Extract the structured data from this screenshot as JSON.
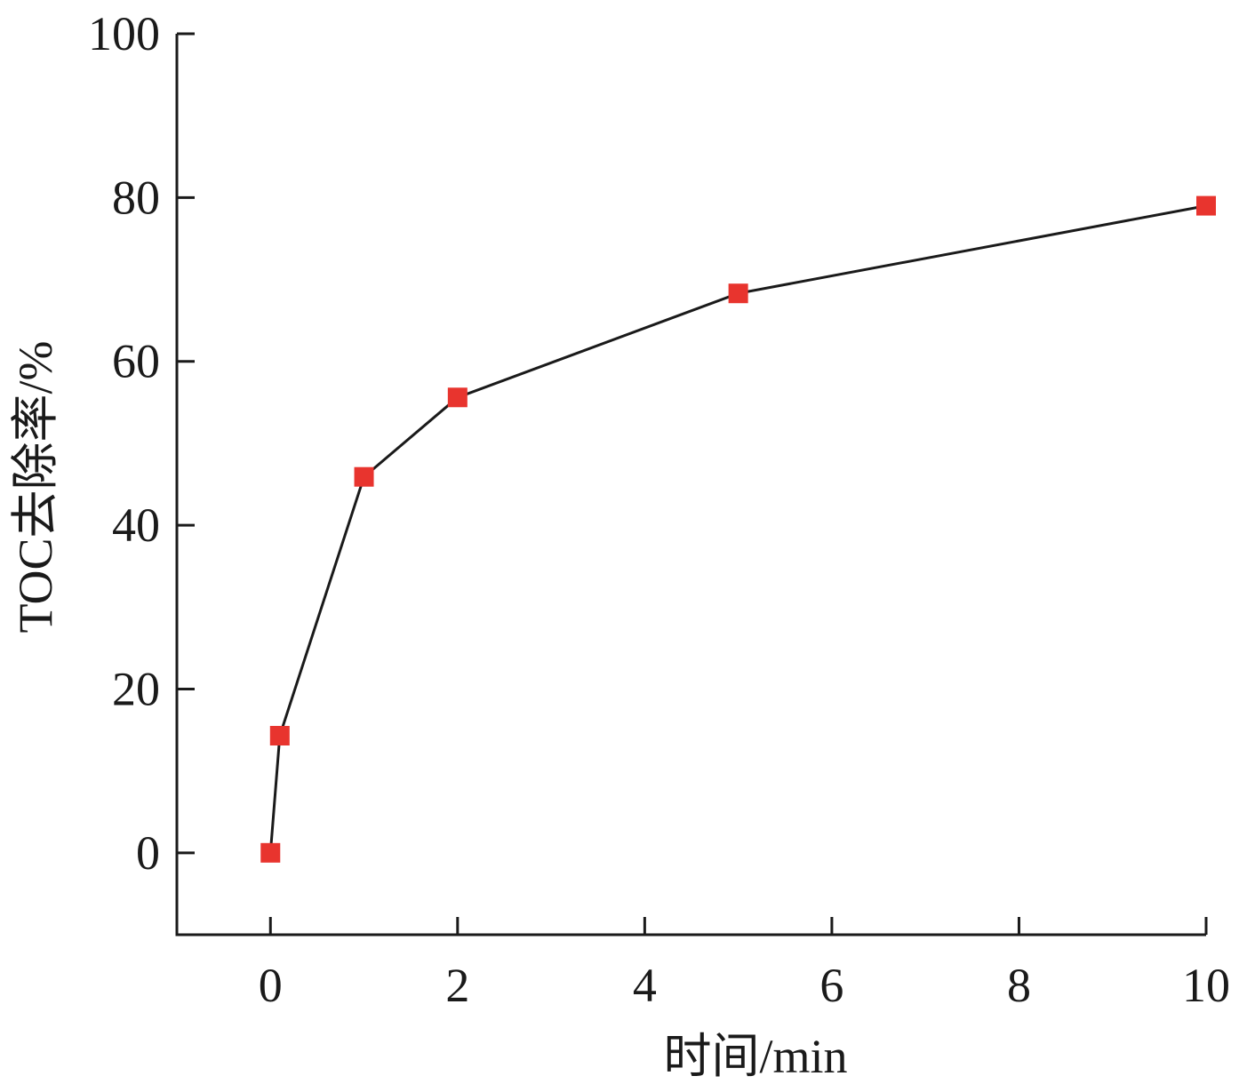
{
  "chart_data": {
    "type": "line",
    "title": "",
    "xlabel": "时间/min",
    "ylabel": "TOC去除率/%",
    "xlim": [
      -1,
      10
    ],
    "ylim": [
      -10,
      100
    ],
    "xticks": [
      0,
      2,
      4,
      6,
      8,
      10
    ],
    "yticks": [
      0,
      20,
      40,
      60,
      80,
      100
    ],
    "xtick_labels": [
      "0",
      "2",
      "4",
      "6",
      "8",
      "10"
    ],
    "ytick_labels": [
      "0",
      "20",
      "40",
      "60",
      "80",
      "100"
    ],
    "grid": false,
    "legend": "none",
    "series": [
      {
        "x": [
          0,
          0.1,
          1,
          2,
          5,
          10
        ],
        "y": [
          0,
          14.3,
          45.9,
          55.6,
          68.3,
          79.0
        ],
        "marker": "square",
        "marker_color": "#e8342e",
        "line_color": "#1a1a1a"
      }
    ]
  }
}
